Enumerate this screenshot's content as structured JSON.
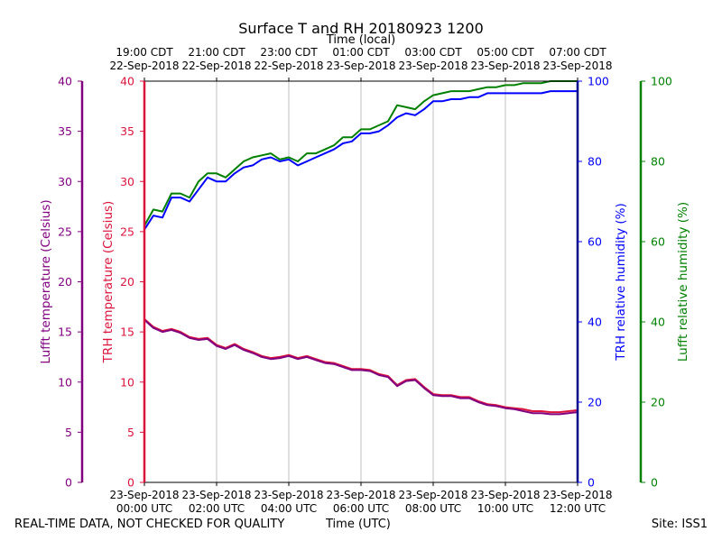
{
  "chart_data": {
    "type": "line",
    "title": "Surface T and RH 20180923 1200",
    "top_axis_label": "Time (local)",
    "xlabel": "Time (UTC)",
    "xlim": [
      "2018-09-23 00:00",
      "2018-09-23 12:00"
    ],
    "x_units": "hours UTC on 23-Sep-2018",
    "bottom_ticks": [
      {
        "x": 0,
        "line1": "23-Sep-2018",
        "line2": "00:00 UTC"
      },
      {
        "x": 2,
        "line1": "23-Sep-2018",
        "line2": "02:00 UTC"
      },
      {
        "x": 4,
        "line1": "23-Sep-2018",
        "line2": "04:00 UTC"
      },
      {
        "x": 6,
        "line1": "23-Sep-2018",
        "line2": "06:00 UTC"
      },
      {
        "x": 8,
        "line1": "23-Sep-2018",
        "line2": "08:00 UTC"
      },
      {
        "x": 10,
        "line1": "23-Sep-2018",
        "line2": "10:00 UTC"
      },
      {
        "x": 12,
        "line1": "23-Sep-2018",
        "line2": "12:00 UTC"
      }
    ],
    "top_ticks": [
      {
        "x": 0,
        "line1": "19:00 CDT",
        "line2": "22-Sep-2018"
      },
      {
        "x": 2,
        "line1": "21:00 CDT",
        "line2": "22-Sep-2018"
      },
      {
        "x": 4,
        "line1": "23:00 CDT",
        "line2": "22-Sep-2018"
      },
      {
        "x": 6,
        "line1": "01:00 CDT",
        "line2": "23-Sep-2018"
      },
      {
        "x": 8,
        "line1": "03:00 CDT",
        "line2": "23-Sep-2018"
      },
      {
        "x": 10,
        "line1": "05:00 CDT",
        "line2": "23-Sep-2018"
      },
      {
        "x": 12,
        "line1": "07:00 CDT",
        "line2": "23-Sep-2018"
      }
    ],
    "grid": "vertical only",
    "axes": {
      "lufft_t": {
        "label": "Lufft temperature (Celsius)",
        "color": "#800080",
        "lim": [
          0,
          40
        ],
        "ticks": [
          "0",
          "5",
          "10",
          "15",
          "20",
          "25",
          "30",
          "35",
          "40"
        ]
      },
      "trh_t": {
        "label": "TRH temperature (Celsius)",
        "color": "#dc143c",
        "lim": [
          0,
          40
        ],
        "ticks": [
          "0",
          "5",
          "10",
          "15",
          "20",
          "25",
          "30",
          "35",
          "40"
        ]
      },
      "trh_rh": {
        "label": "TRH relative humidity (%)",
        "color": "#0000ff",
        "lim": [
          0,
          100
        ],
        "ticks": [
          "0",
          "20",
          "40",
          "60",
          "80",
          "100"
        ]
      },
      "lufft_rh": {
        "label": "Lufft relative humidity (%)",
        "color": "#008000",
        "lim": [
          0,
          100
        ],
        "ticks": [
          "0",
          "20",
          "40",
          "60",
          "80",
          "100"
        ]
      }
    },
    "series": [
      {
        "axis": "trh_t",
        "color": "#dc143c",
        "x": [
          0,
          0.25,
          0.5,
          0.75,
          1,
          1.25,
          1.5,
          1.75,
          2,
          2.25,
          2.5,
          2.75,
          3,
          3.25,
          3.5,
          3.75,
          4,
          4.25,
          4.5,
          4.75,
          5,
          5.25,
          5.5,
          5.75,
          6,
          6.25,
          6.5,
          6.75,
          7,
          7.25,
          7.5,
          7.75,
          8,
          8.25,
          8.5,
          8.75,
          9,
          9.25,
          9.5,
          9.75,
          10,
          10.25,
          10.5,
          10.75,
          11,
          11.25,
          11.5,
          11.75,
          12
        ],
        "values": [
          16.3,
          15.5,
          15.1,
          15.3,
          15.0,
          14.5,
          14.3,
          14.4,
          13.7,
          13.4,
          13.8,
          13.3,
          13.0,
          12.6,
          12.4,
          12.5,
          12.7,
          12.4,
          12.6,
          12.3,
          12.0,
          11.9,
          11.6,
          11.3,
          11.3,
          11.2,
          10.8,
          10.6,
          9.7,
          10.2,
          10.3,
          9.5,
          8.8,
          8.7,
          8.7,
          8.5,
          8.5,
          8.1,
          7.8,
          7.7,
          7.5,
          7.4,
          7.3,
          7.1,
          7.1,
          7.0,
          7.0,
          7.1,
          7.2
        ]
      },
      {
        "axis": "lufft_t",
        "color": "#800080",
        "x": [
          0,
          0.25,
          0.5,
          0.75,
          1,
          1.25,
          1.5,
          1.75,
          2,
          2.25,
          2.5,
          2.75,
          3,
          3.25,
          3.5,
          3.75,
          4,
          4.25,
          4.5,
          4.75,
          5,
          5.25,
          5.5,
          5.75,
          6,
          6.25,
          6.5,
          6.75,
          7,
          7.25,
          7.5,
          7.75,
          8,
          8.25,
          8.5,
          8.75,
          9,
          9.25,
          9.5,
          9.75,
          10,
          10.25,
          10.5,
          10.75,
          11,
          11.25,
          11.5,
          11.75,
          12
        ],
        "values": [
          16.2,
          15.4,
          15.0,
          15.2,
          14.9,
          14.4,
          14.2,
          14.3,
          13.6,
          13.3,
          13.7,
          13.2,
          12.9,
          12.5,
          12.3,
          12.4,
          12.6,
          12.3,
          12.5,
          12.2,
          11.9,
          11.8,
          11.5,
          11.2,
          11.2,
          11.1,
          10.7,
          10.5,
          9.6,
          10.1,
          10.2,
          9.4,
          8.7,
          8.6,
          8.6,
          8.4,
          8.4,
          8.0,
          7.7,
          7.6,
          7.4,
          7.3,
          7.1,
          6.9,
          6.9,
          6.8,
          6.8,
          6.9,
          7.0
        ]
      },
      {
        "axis": "trh_rh",
        "color": "#0000ff",
        "x": [
          0,
          0.25,
          0.5,
          0.75,
          1,
          1.25,
          1.5,
          1.75,
          2,
          2.25,
          2.5,
          2.75,
          3,
          3.25,
          3.5,
          3.75,
          4,
          4.25,
          4.5,
          4.75,
          5,
          5.25,
          5.5,
          5.75,
          6,
          6.25,
          6.5,
          6.75,
          7,
          7.25,
          7.5,
          7.75,
          8,
          8.25,
          8.5,
          8.75,
          9,
          9.25,
          9.5,
          9.75,
          10,
          10.25,
          10.5,
          10.75,
          11,
          11.25,
          11.5,
          11.75,
          12
        ],
        "values": [
          63,
          66.5,
          66,
          71,
          71,
          70,
          73,
          76,
          75,
          75,
          77,
          78.5,
          79,
          80.5,
          81,
          80,
          80.5,
          79,
          80,
          81,
          82,
          83,
          84.5,
          85,
          87,
          87,
          87.5,
          89,
          91,
          92,
          91.5,
          93,
          95,
          95,
          95.5,
          95.5,
          96,
          96,
          97,
          97,
          97,
          97,
          97,
          97,
          97,
          97.5,
          97.5,
          97.5,
          97.5
        ]
      },
      {
        "axis": "lufft_rh",
        "color": "#008000",
        "x": [
          0,
          0.25,
          0.5,
          0.75,
          1,
          1.25,
          1.5,
          1.75,
          2,
          2.25,
          2.5,
          2.75,
          3,
          3.25,
          3.5,
          3.75,
          4,
          4.25,
          4.5,
          4.75,
          5,
          5.25,
          5.5,
          5.75,
          6,
          6.25,
          6.5,
          6.75,
          7,
          7.25,
          7.5,
          7.75,
          8,
          8.25,
          8.5,
          8.75,
          9,
          9.25,
          9.5,
          9.75,
          10,
          10.25,
          10.5,
          10.75,
          11,
          11.25,
          11.5,
          11.75,
          12
        ],
        "values": [
          64,
          68,
          67.5,
          72,
          72,
          71,
          75,
          77,
          77,
          76,
          78,
          80,
          81,
          81.5,
          82,
          80.5,
          81,
          80,
          82,
          82,
          83,
          84,
          86,
          86,
          88,
          88,
          89,
          90,
          94,
          93.5,
          93,
          95,
          96.5,
          97,
          97.5,
          97.5,
          97.5,
          98,
          98.5,
          98.5,
          99,
          99,
          99.5,
          99.5,
          99.5,
          100,
          100,
          100,
          100
        ]
      }
    ]
  },
  "footer": {
    "left": "REAL-TIME DATA, NOT CHECKED FOR QUALITY",
    "center": "Time (UTC)",
    "right": "Site: ISS1"
  }
}
